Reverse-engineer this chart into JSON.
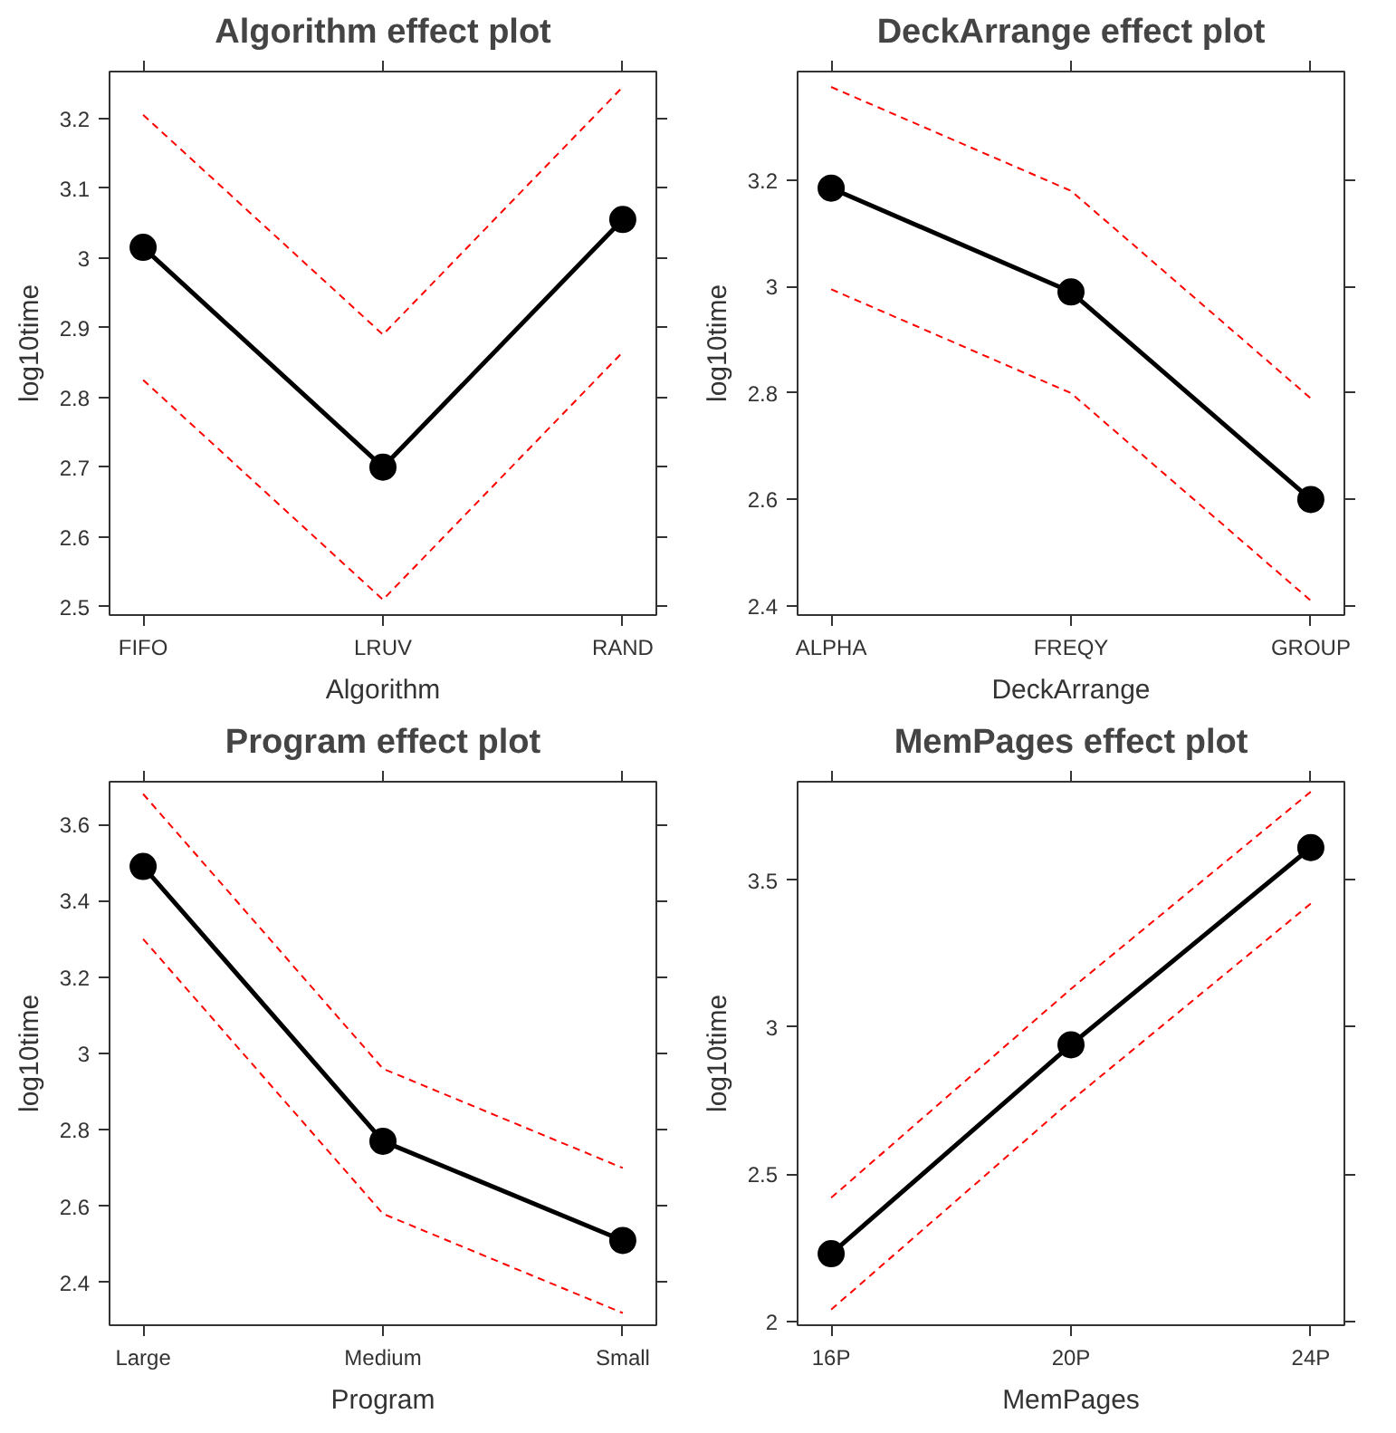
{
  "chart_data": [
    {
      "type": "line",
      "title": "Algorithm effect plot",
      "xlabel": "Algorithm",
      "ylabel": "log10time",
      "categories": [
        "FIFO",
        "LRUV",
        "RAND"
      ],
      "marker": "circle",
      "line_style": "solid",
      "grid": false,
      "ylim": [
        2.488,
        3.267
      ],
      "yticks": [
        2.5,
        2.6,
        2.7,
        2.8,
        2.9,
        3,
        3.1,
        3.2
      ],
      "series": [
        {
          "color": "#000000",
          "values": [
            3.015,
            2.7,
            3.055
          ]
        },
        {
          "color": "#ff0000",
          "line_style": "dashed",
          "marker": "none",
          "values": [
            3.205,
            2.89,
            3.245
          ]
        },
        {
          "color": "#ff0000",
          "line_style": "dashed",
          "marker": "none",
          "values": [
            2.825,
            2.51,
            2.865
          ]
        }
      ]
    },
    {
      "type": "line",
      "title": "DeckArrange effect plot",
      "xlabel": "DeckArrange",
      "ylabel": "log10time",
      "categories": [
        "ALPHA",
        "FREQY",
        "GROUP"
      ],
      "marker": "circle",
      "line_style": "solid",
      "grid": false,
      "ylim": [
        2.383,
        3.404
      ],
      "yticks": [
        2.4,
        2.6,
        2.8,
        3,
        3.2
      ],
      "series": [
        {
          "color": "#000000",
          "values": [
            3.185,
            2.99,
            2.6
          ]
        },
        {
          "color": "#ff0000",
          "line_style": "dashed",
          "marker": "none",
          "values": [
            3.375,
            3.18,
            2.79
          ]
        },
        {
          "color": "#ff0000",
          "line_style": "dashed",
          "marker": "none",
          "values": [
            2.995,
            2.8,
            2.41
          ]
        }
      ]
    },
    {
      "type": "line",
      "title": "Program effect plot",
      "xlabel": "Program",
      "ylabel": "log10time",
      "categories": [
        "Large",
        "Medium",
        "Small"
      ],
      "marker": "circle",
      "line_style": "solid",
      "grid": false,
      "ylim": [
        2.288,
        3.712
      ],
      "yticks": [
        2.4,
        2.6,
        2.8,
        3,
        3.2,
        3.4,
        3.6
      ],
      "series": [
        {
          "color": "#000000",
          "values": [
            3.49,
            2.77,
            2.51
          ]
        },
        {
          "color": "#ff0000",
          "line_style": "dashed",
          "marker": "none",
          "values": [
            3.68,
            2.96,
            2.7
          ]
        },
        {
          "color": "#ff0000",
          "line_style": "dashed",
          "marker": "none",
          "values": [
            3.3,
            2.58,
            2.32
          ]
        }
      ]
    },
    {
      "type": "line",
      "title": "MemPages effect plot",
      "xlabel": "MemPages",
      "ylabel": "log10time",
      "categories": [
        "16P",
        "20P",
        "24P"
      ],
      "marker": "circle",
      "line_style": "solid",
      "grid": false,
      "ylim": [
        1.987,
        3.834
      ],
      "yticks": [
        2,
        2.5,
        3,
        3.5
      ],
      "series": [
        {
          "color": "#000000",
          "values": [
            2.23,
            2.94,
            3.61
          ]
        },
        {
          "color": "#ff0000",
          "line_style": "dashed",
          "marker": "none",
          "values": [
            2.42,
            3.13,
            3.8
          ]
        },
        {
          "color": "#ff0000",
          "line_style": "dashed",
          "marker": "none",
          "values": [
            2.04,
            2.75,
            3.42
          ]
        }
      ]
    }
  ]
}
